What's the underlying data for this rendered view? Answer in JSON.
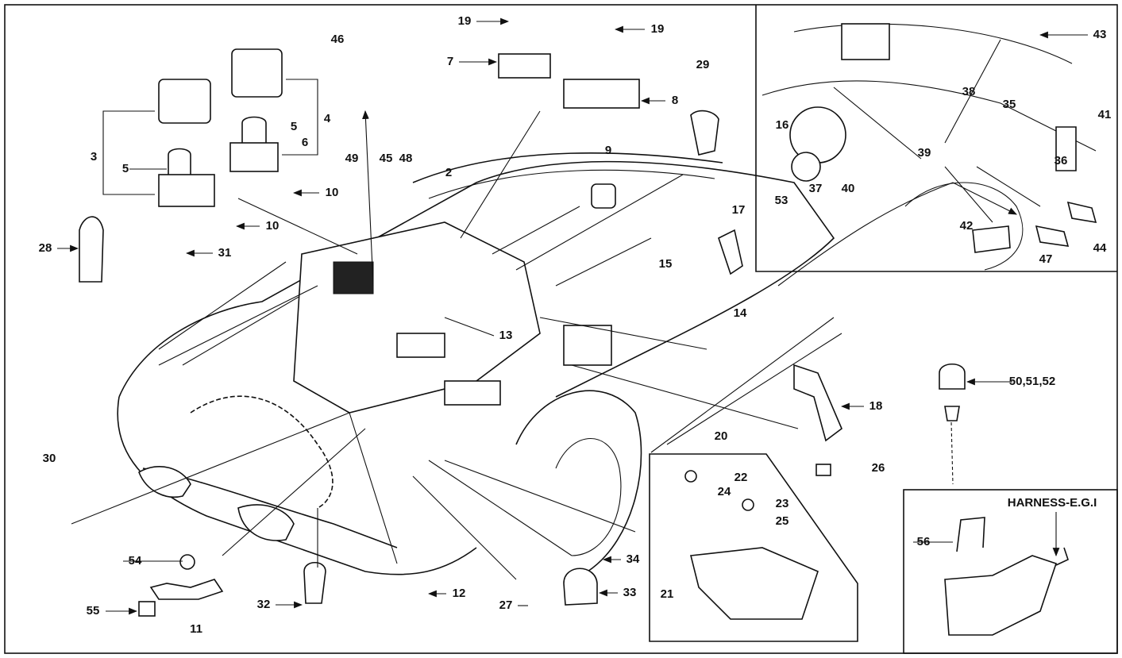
{
  "callouts": [
    "19",
    "19",
    "7",
    "8",
    "46",
    "29",
    "3",
    "4",
    "5",
    "5",
    "6",
    "49",
    "45",
    "48",
    "2",
    "9",
    "10",
    "10",
    "28",
    "31",
    "15",
    "17",
    "13",
    "14",
    "18",
    "20",
    "22",
    "24",
    "23",
    "25",
    "21",
    "26",
    "30",
    "54",
    "55",
    "11",
    "32",
    "12",
    "27",
    "33",
    "34",
    "43",
    "16",
    "38",
    "35",
    "41",
    "36",
    "37",
    "39",
    "40",
    "53",
    "42",
    "47",
    "44",
    "50,51,52",
    "HARNESS-E.G.I",
    "56"
  ]
}
